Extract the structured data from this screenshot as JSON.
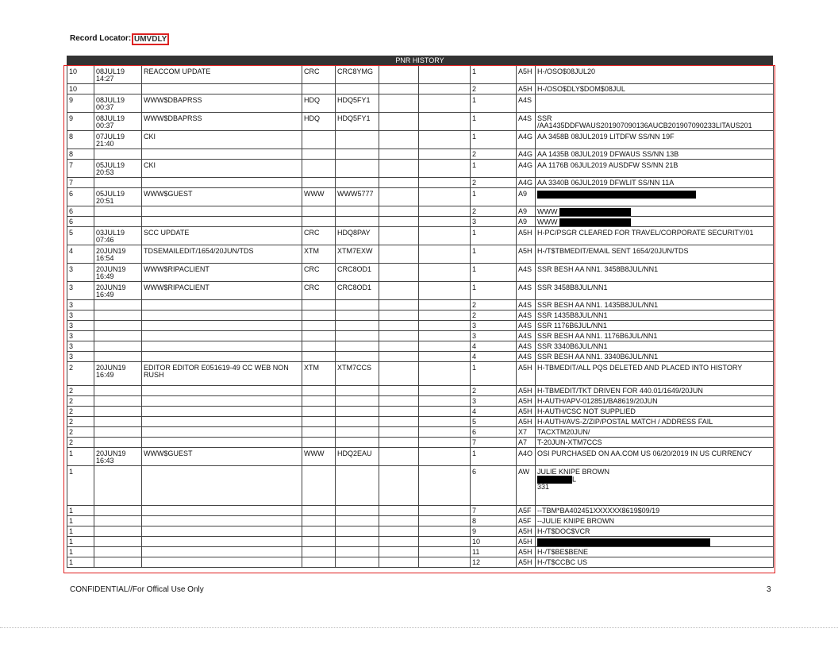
{
  "header": {
    "label": "Record Locator:",
    "locator": "UMVDLY"
  },
  "table": {
    "title": "PNR HISTORY",
    "rows": [
      {
        "seq": "10",
        "date": "08JUL19",
        "time": "14:27",
        "action": "REACCOM UPDATE",
        "agent": "CRC",
        "sine": "CRC8YMG",
        "item": "1",
        "code": "A5H",
        "text": [
          "H-/OSO$08JUL20"
        ]
      },
      {
        "seq": "10",
        "item": "2",
        "code": "A5H",
        "text": [
          "H-/OSO$DLY$DOM$08JUL"
        ]
      },
      {
        "seq": "9",
        "date": "08JUL19",
        "time": "00:37",
        "action": "WWW$DBAPRSS",
        "agent": "HDQ",
        "sine": "HDQ5FY1",
        "item": "1",
        "code": "A4S"
      },
      {
        "seq": "9",
        "date": "08JUL19",
        "time": "00:37",
        "action": "WWW$DBAPRSS",
        "agent": "HDQ",
        "sine": "HDQ5FY1",
        "item": "1",
        "code": "A4S",
        "text": [
          "SSR",
          "/AA1435DDFWAUS201907090136AUCB201907090233LITAUS201"
        ]
      },
      {
        "seq": "8",
        "date": "07JUL19",
        "time": "21:40",
        "action": "CKI",
        "item": "1",
        "code": "A4G",
        "text": [
          "AA 3458B 08JUL2019 LITDFW SS/NN 19F"
        ]
      },
      {
        "seq": "8",
        "item": "2",
        "code": "A4G",
        "text": [
          "AA 1435B 08JUL2019 DFWAUS SS/NN 13B"
        ]
      },
      {
        "seq": "7",
        "date": "05JUL19",
        "time": "20:53",
        "action": "CKI",
        "item": "1",
        "code": "A4G",
        "text": [
          "AA 1176B 06JUL2019 AUSDFW SS/NN 21B"
        ]
      },
      {
        "seq": "7",
        "item": "2",
        "code": "A4G",
        "text": [
          "AA 3340B 06JUL2019 DFWLIT SS/NN 11A"
        ]
      },
      {
        "seq": "6",
        "date": "05JUL19",
        "time": "20:51",
        "action": "WWW$GUEST",
        "agent": "WWW",
        "sine": "WWW5777",
        "item": "1",
        "code": "A9"
      },
      {
        "seq": "6",
        "item": "2",
        "code": "A9",
        "text": [
          "WWW"
        ]
      },
      {
        "seq": "6",
        "item": "3",
        "code": "A9",
        "text": [
          "WWW"
        ]
      },
      {
        "seq": "5",
        "date": "03JUL19",
        "time": "07:46",
        "action": "SCC UPDATE",
        "agent": "CRC",
        "sine": "HDQ8PAY",
        "item": "1",
        "code": "A5H",
        "text": [
          "H-PC/PSGR CLEARED FOR TRAVEL/CORPORATE SECURITY/01"
        ]
      },
      {
        "seq": "4",
        "date": "20JUN19",
        "time": "16:54",
        "action": "TDSEMAILEDIT/1654/20JUN/TDS",
        "agent": "XTM",
        "sine": "XTM7EXW",
        "item": "1",
        "code": "A5H",
        "text": [
          "H-/T$TBMEDIT/EMAIL SENT 1654/20JUN/TDS"
        ]
      },
      {
        "seq": "3",
        "date": "20JUN19",
        "time": "16:49",
        "action": "WWW$RIPACLIENT",
        "agent": "CRC",
        "sine": "CRC8OD1",
        "item": "1",
        "code": "A4S",
        "text": [
          "SSR BESH AA NN1. 3458B8JUL/NN1"
        ]
      },
      {
        "seq": "3",
        "date": "20JUN19",
        "time": "16:49",
        "action": "WWW$RIPACLIENT",
        "agent": "CRC",
        "sine": "CRC8OD1",
        "item": "1",
        "code": "A4S",
        "text": [
          "SSR 3458B8JUL/NN1"
        ]
      },
      {
        "seq": "3",
        "item": "2",
        "code": "A4S",
        "text": [
          "SSR BESH AA NN1. 1435B8JUL/NN1"
        ]
      },
      {
        "seq": "3",
        "item": "2",
        "code": "A4S",
        "text": [
          "SSR 1435B8JUL/NN1"
        ]
      },
      {
        "seq": "3",
        "item": "3",
        "code": "A4S",
        "text": [
          "SSR 1176B6JUL/NN1"
        ]
      },
      {
        "seq": "3",
        "item": "3",
        "code": "A4S",
        "text": [
          "SSR BESH AA NN1. 1176B6JUL/NN1"
        ]
      },
      {
        "seq": "3",
        "item": "4",
        "code": "A4S",
        "text": [
          "SSR 3340B6JUL/NN1"
        ]
      },
      {
        "seq": "3",
        "item": "4",
        "code": "A4S",
        "text": [
          "SSR BESH AA NN1. 3340B6JUL/NN1"
        ]
      },
      {
        "seq": "2",
        "date": "20JUN19",
        "time": "16:49",
        "action": "EDITOR EDITOR E051619-49 CC WEB NON RUSH",
        "agent": "XTM",
        "sine": "XTM7CCS",
        "item": "1",
        "code": "A5H",
        "text": [
          "H-TBMEDIT/ALL PQS DELETED AND PLACED INTO HISTORY"
        ]
      },
      {
        "seq": "2",
        "item": "2",
        "code": "A5H",
        "text": [
          "H-TBMEDIT/TKT DRIVEN FOR 440.01/1649/20JUN"
        ]
      },
      {
        "seq": "2",
        "item": "3",
        "code": "A5H",
        "text": [
          "H-AUTH/APV-012851/BA8619/20JUN"
        ]
      },
      {
        "seq": "2",
        "item": "4",
        "code": "A5H",
        "text": [
          "H-AUTH/CSC NOT SUPPLIED"
        ]
      },
      {
        "seq": "2",
        "item": "5",
        "code": "A5H",
        "text": [
          "H-AUTH/AVS-Z/ZIP/POSTAL MATCH / ADDRESS FAIL"
        ]
      },
      {
        "seq": "2",
        "item": "6",
        "code": "X7",
        "text": [
          "TACXTM20JUN/"
        ]
      },
      {
        "seq": "2",
        "item": "7",
        "code": "A7",
        "text": [
          "T-20JUN-XTM7CCS"
        ]
      },
      {
        "seq": "1",
        "date": "20JUN19",
        "time": "16:43",
        "action": "WWW$GUEST",
        "agent": "WWW",
        "sine": "HDQ2EAU",
        "item": "1",
        "code": "A4O",
        "text": [
          "OSI PURCHASED ON AA.COM US 06/20/2019 IN US CURRENCY"
        ]
      },
      {
        "seq": "1",
        "item": "6",
        "code": "AW",
        "text": [
          "JULIE KNIPE BROWN",
          "L",
          "331"
        ]
      },
      {
        "seq": "1",
        "item": "7",
        "code": "A5F",
        "text": [
          "--TBM*BA402451XXXXXX8619$09/19"
        ]
      },
      {
        "seq": "1",
        "item": "8",
        "code": "A5F",
        "text": [
          "--JULIE KNIPE BROWN"
        ]
      },
      {
        "seq": "1",
        "item": "9",
        "code": "A5H",
        "text": [
          "H-/T$DOC$VCR"
        ]
      },
      {
        "seq": "1",
        "item": "10",
        "code": "A5H"
      },
      {
        "seq": "1",
        "item": "11",
        "code": "A5H",
        "text": [
          "H-/T$BE$BENE"
        ]
      },
      {
        "seq": "1",
        "item": "12",
        "code": "A5H",
        "text": [
          "H-/T$CCBC US"
        ]
      }
    ]
  },
  "footer": {
    "notice": "CONFIDENTIAL//For Offical Use Only",
    "page": "3"
  }
}
